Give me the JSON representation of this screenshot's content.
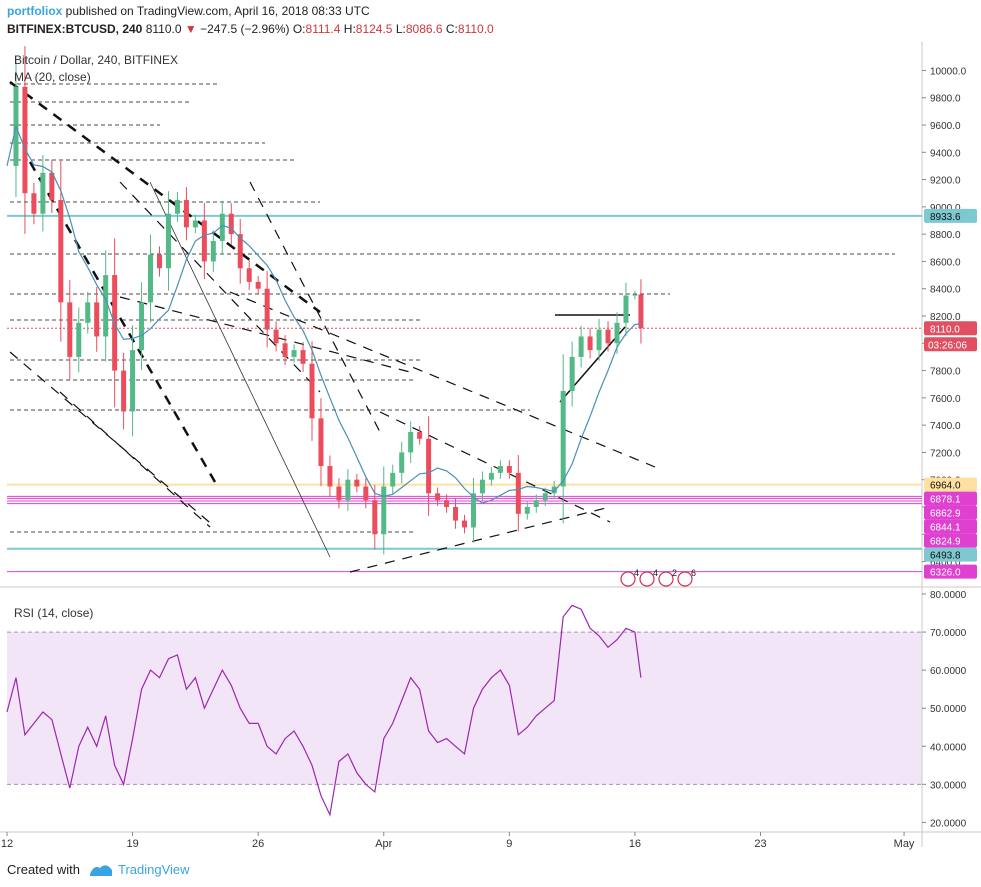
{
  "header": {
    "author": "portfoliox",
    "published": "published on TradingView.com, April 16, 2018 08:33 UTC",
    "symbol": "BITFINEX:BTCUSD, 240",
    "last": "8110.0",
    "down_arrow": "▼",
    "change": "−247.5 (−2.96%)",
    "o_label": "O:",
    "o_value": "8111.4",
    "h_label": "H:",
    "h_value": "8124.5",
    "l_label": "L:",
    "l_value": "8086.6",
    "c_label": "C:",
    "c_value": "8110.0"
  },
  "footer": {
    "created": "Created with",
    "brand": "TradingView"
  },
  "colors": {
    "up": "#53b987",
    "down": "#eb4d5c",
    "ma": "#4a90b8",
    "rsi": "#9c27b0",
    "rsi_band": "#f3e5f8",
    "teal": "#7ec8d0",
    "magenta": "#e040d0",
    "yellow": "#ffe0a0",
    "last_tag": "#e05060"
  },
  "chart_data": [
    {
      "type": "candlestick",
      "title": "Bitcoin / Dollar, 240, BITFINEX",
      "indicator": "MA (20, close)",
      "ylim": [
        6250,
        10150
      ],
      "y_ticks": [
        10000,
        9800,
        9600,
        9400,
        9200,
        9000,
        8800,
        8600,
        8400,
        8200,
        8000,
        7800,
        7600,
        7400,
        7200,
        7000,
        6800,
        6600,
        6400,
        6200
      ],
      "y_tick_labels": [
        "10000.0",
        "9800.0",
        "9600.0",
        "9400.0",
        "9200.0",
        "9000.0",
        "8800.0",
        "8600.0",
        "8400.0",
        "8200.0",
        "8000.0",
        "7800.0",
        "7600.0",
        "7400.0",
        "7200.0",
        "7000.0",
        "6800.0",
        "6600.0",
        "6400.0",
        "6200.0"
      ],
      "x_axis": {
        "start": "2018-03-12",
        "end": "2018-05-02",
        "ticks": [
          {
            "date": "2018-03-12",
            "label": "12"
          },
          {
            "date": "2018-03-19",
            "label": "19"
          },
          {
            "date": "2018-03-26",
            "label": "26"
          },
          {
            "date": "2018-04-02",
            "label": "Apr"
          },
          {
            "date": "2018-04-09",
            "label": "9"
          },
          {
            "date": "2018-04-16",
            "label": "16"
          },
          {
            "date": "2018-04-23",
            "label": "23"
          },
          {
            "date": "2018-05-01",
            "label": "May"
          }
        ]
      },
      "price_path": [
        [
          "2018-03-12",
          9300
        ],
        [
          "2018-03-12T12:00",
          9880
        ],
        [
          "2018-03-13",
          9100
        ],
        [
          "2018-03-13T12:00",
          8950
        ],
        [
          "2018-03-14",
          9250
        ],
        [
          "2018-03-14T12:00",
          9050
        ],
        [
          "2018-03-15",
          8300
        ],
        [
          "2018-03-15T12:00",
          7900
        ],
        [
          "2018-03-16",
          8150
        ],
        [
          "2018-03-16T12:00",
          8300
        ],
        [
          "2018-03-17",
          8050
        ],
        [
          "2018-03-17T12:00",
          8500
        ],
        [
          "2018-03-18",
          7800
        ],
        [
          "2018-03-18T12:00",
          7500
        ],
        [
          "2018-03-19",
          7950
        ],
        [
          "2018-03-19T12:00",
          8300
        ],
        [
          "2018-03-20",
          8650
        ],
        [
          "2018-03-20T12:00",
          8550
        ],
        [
          "2018-03-21",
          8950
        ],
        [
          "2018-03-21T12:00",
          9050
        ],
        [
          "2018-03-22",
          8850
        ],
        [
          "2018-03-22T12:00",
          8900
        ],
        [
          "2018-03-23",
          8600
        ],
        [
          "2018-03-23T12:00",
          8750
        ],
        [
          "2018-03-24",
          8950
        ],
        [
          "2018-03-24T12:00",
          8800
        ],
        [
          "2018-03-25",
          8550
        ],
        [
          "2018-03-25T12:00",
          8450
        ],
        [
          "2018-03-26",
          8400
        ],
        [
          "2018-03-26T12:00",
          8100
        ],
        [
          "2018-03-27",
          8000
        ],
        [
          "2018-03-27T12:00",
          7900
        ],
        [
          "2018-03-28",
          7950
        ],
        [
          "2018-03-28T12:00",
          7850
        ],
        [
          "2018-03-29",
          7450
        ],
        [
          "2018-03-29T12:00",
          7100
        ],
        [
          "2018-03-30",
          6950
        ],
        [
          "2018-03-30T12:00",
          6850
        ],
        [
          "2018-03-31",
          7000
        ],
        [
          "2018-03-31T12:00",
          6950
        ],
        [
          "2018-04-01",
          6850
        ],
        [
          "2018-04-01T12:00",
          6600
        ],
        [
          "2018-04-02",
          6950
        ],
        [
          "2018-04-02T12:00",
          7050
        ],
        [
          "2018-04-03",
          7200
        ],
        [
          "2018-04-03T12:00",
          7350
        ],
        [
          "2018-04-04",
          7300
        ],
        [
          "2018-04-04T12:00",
          6900
        ],
        [
          "2018-04-05",
          6850
        ],
        [
          "2018-04-05T12:00",
          6800
        ],
        [
          "2018-04-06",
          6700
        ],
        [
          "2018-04-06T12:00",
          6650
        ],
        [
          "2018-04-07",
          6900
        ],
        [
          "2018-04-07T12:00",
          7000
        ],
        [
          "2018-04-08",
          7050
        ],
        [
          "2018-04-08T12:00",
          7100
        ],
        [
          "2018-04-09",
          7050
        ],
        [
          "2018-04-09T12:00",
          6750
        ],
        [
          "2018-04-10",
          6800
        ],
        [
          "2018-04-10T12:00",
          6850
        ],
        [
          "2018-04-11",
          6900
        ],
        [
          "2018-04-11T12:00",
          6950
        ],
        [
          "2018-04-12",
          7650
        ],
        [
          "2018-04-12T12:00",
          7900
        ],
        [
          "2018-04-13",
          8050
        ],
        [
          "2018-04-13T12:00",
          7950
        ],
        [
          "2018-04-14",
          8100
        ],
        [
          "2018-04-14T12:00",
          8000
        ],
        [
          "2018-04-15",
          8150
        ],
        [
          "2018-04-15T12:00",
          8350
        ],
        [
          "2018-04-16",
          8357.5
        ],
        [
          "2018-04-16T08:00",
          8110
        ]
      ],
      "horizontal_levels": [
        {
          "value": 8933.6,
          "label": "8933.6",
          "style": "teal"
        },
        {
          "value": 8110.0,
          "label": "8110.0",
          "style": "last"
        },
        {
          "value": 6964.0,
          "label": "6964.0",
          "style": "yellow"
        },
        {
          "value": 6878.1,
          "label": "6878.1",
          "style": "magenta"
        },
        {
          "value": 6862.9,
          "label": "6862.9",
          "style": "magenta"
        },
        {
          "value": 6844.1,
          "label": "6844.1",
          "style": "magenta"
        },
        {
          "value": 6824.9,
          "label": "6824.9",
          "style": "magenta"
        },
        {
          "value": 6493.8,
          "label": "6493.8",
          "style": "teal"
        },
        {
          "value": 6326.0,
          "label": "6326.0",
          "style": "magenta"
        }
      ],
      "countdown": "03:26:06",
      "event_markers": [
        "4",
        "4",
        "2",
        "6"
      ]
    },
    {
      "type": "line",
      "title": "RSI (14, close)",
      "ylim": [
        18,
        80
      ],
      "band": [
        30,
        70
      ],
      "y_ticks": [
        80,
        70,
        60,
        50,
        40,
        30,
        20
      ],
      "y_tick_labels": [
        "80.0000",
        "70.0000",
        "60.0000",
        "50.0000",
        "40.0000",
        "30.0000",
        "20.0000"
      ],
      "values": [
        [
          "2018-03-12",
          49
        ],
        [
          "2018-03-12T12:00",
          58
        ],
        [
          "2018-03-13",
          43
        ],
        [
          "2018-03-13T12:00",
          46
        ],
        [
          "2018-03-14",
          49
        ],
        [
          "2018-03-14T12:00",
          47
        ],
        [
          "2018-03-15",
          38
        ],
        [
          "2018-03-15T12:00",
          29
        ],
        [
          "2018-03-16",
          40
        ],
        [
          "2018-03-16T12:00",
          45
        ],
        [
          "2018-03-17",
          40
        ],
        [
          "2018-03-17T12:00",
          48
        ],
        [
          "2018-03-18",
          35
        ],
        [
          "2018-03-18T12:00",
          30
        ],
        [
          "2018-03-19",
          42
        ],
        [
          "2018-03-19T12:00",
          55
        ],
        [
          "2018-03-20",
          60
        ],
        [
          "2018-03-20T12:00",
          58
        ],
        [
          "2018-03-21",
          63
        ],
        [
          "2018-03-21T12:00",
          64
        ],
        [
          "2018-03-22",
          55
        ],
        [
          "2018-03-22T12:00",
          58
        ],
        [
          "2018-03-23",
          50
        ],
        [
          "2018-03-23T12:00",
          55
        ],
        [
          "2018-03-24",
          60
        ],
        [
          "2018-03-24T12:00",
          56
        ],
        [
          "2018-03-25",
          50
        ],
        [
          "2018-03-25T12:00",
          46
        ],
        [
          "2018-03-26",
          46
        ],
        [
          "2018-03-26T12:00",
          40
        ],
        [
          "2018-03-27",
          38
        ],
        [
          "2018-03-27T12:00",
          42
        ],
        [
          "2018-03-28",
          44
        ],
        [
          "2018-03-28T12:00",
          40
        ],
        [
          "2018-03-29",
          35
        ],
        [
          "2018-03-29T12:00",
          27
        ],
        [
          "2018-03-30",
          22
        ],
        [
          "2018-03-30T12:00",
          36
        ],
        [
          "2018-03-31",
          38
        ],
        [
          "2018-03-31T12:00",
          33
        ],
        [
          "2018-04-01",
          30
        ],
        [
          "2018-04-01T12:00",
          28
        ],
        [
          "2018-04-02",
          42
        ],
        [
          "2018-04-02T12:00",
          46
        ],
        [
          "2018-04-03",
          52
        ],
        [
          "2018-04-03T12:00",
          58
        ],
        [
          "2018-04-04",
          55
        ],
        [
          "2018-04-04T12:00",
          44
        ],
        [
          "2018-04-05",
          41
        ],
        [
          "2018-04-05T12:00",
          42
        ],
        [
          "2018-04-06",
          40
        ],
        [
          "2018-04-06T12:00",
          38
        ],
        [
          "2018-04-07",
          50
        ],
        [
          "2018-04-07T12:00",
          55
        ],
        [
          "2018-04-08",
          58
        ],
        [
          "2018-04-08T12:00",
          60
        ],
        [
          "2018-04-09",
          56
        ],
        [
          "2018-04-09T12:00",
          43
        ],
        [
          "2018-04-10",
          45
        ],
        [
          "2018-04-10T12:00",
          48
        ],
        [
          "2018-04-11",
          50
        ],
        [
          "2018-04-11T12:00",
          52
        ],
        [
          "2018-04-12",
          74
        ],
        [
          "2018-04-12T12:00",
          77
        ],
        [
          "2018-04-13",
          76
        ],
        [
          "2018-04-13T12:00",
          71
        ],
        [
          "2018-04-14",
          69
        ],
        [
          "2018-04-14T12:00",
          66
        ],
        [
          "2018-04-15",
          68
        ],
        [
          "2018-04-15T12:00",
          71
        ],
        [
          "2018-04-16",
          70
        ],
        [
          "2018-04-16T08:00",
          58
        ]
      ]
    }
  ]
}
